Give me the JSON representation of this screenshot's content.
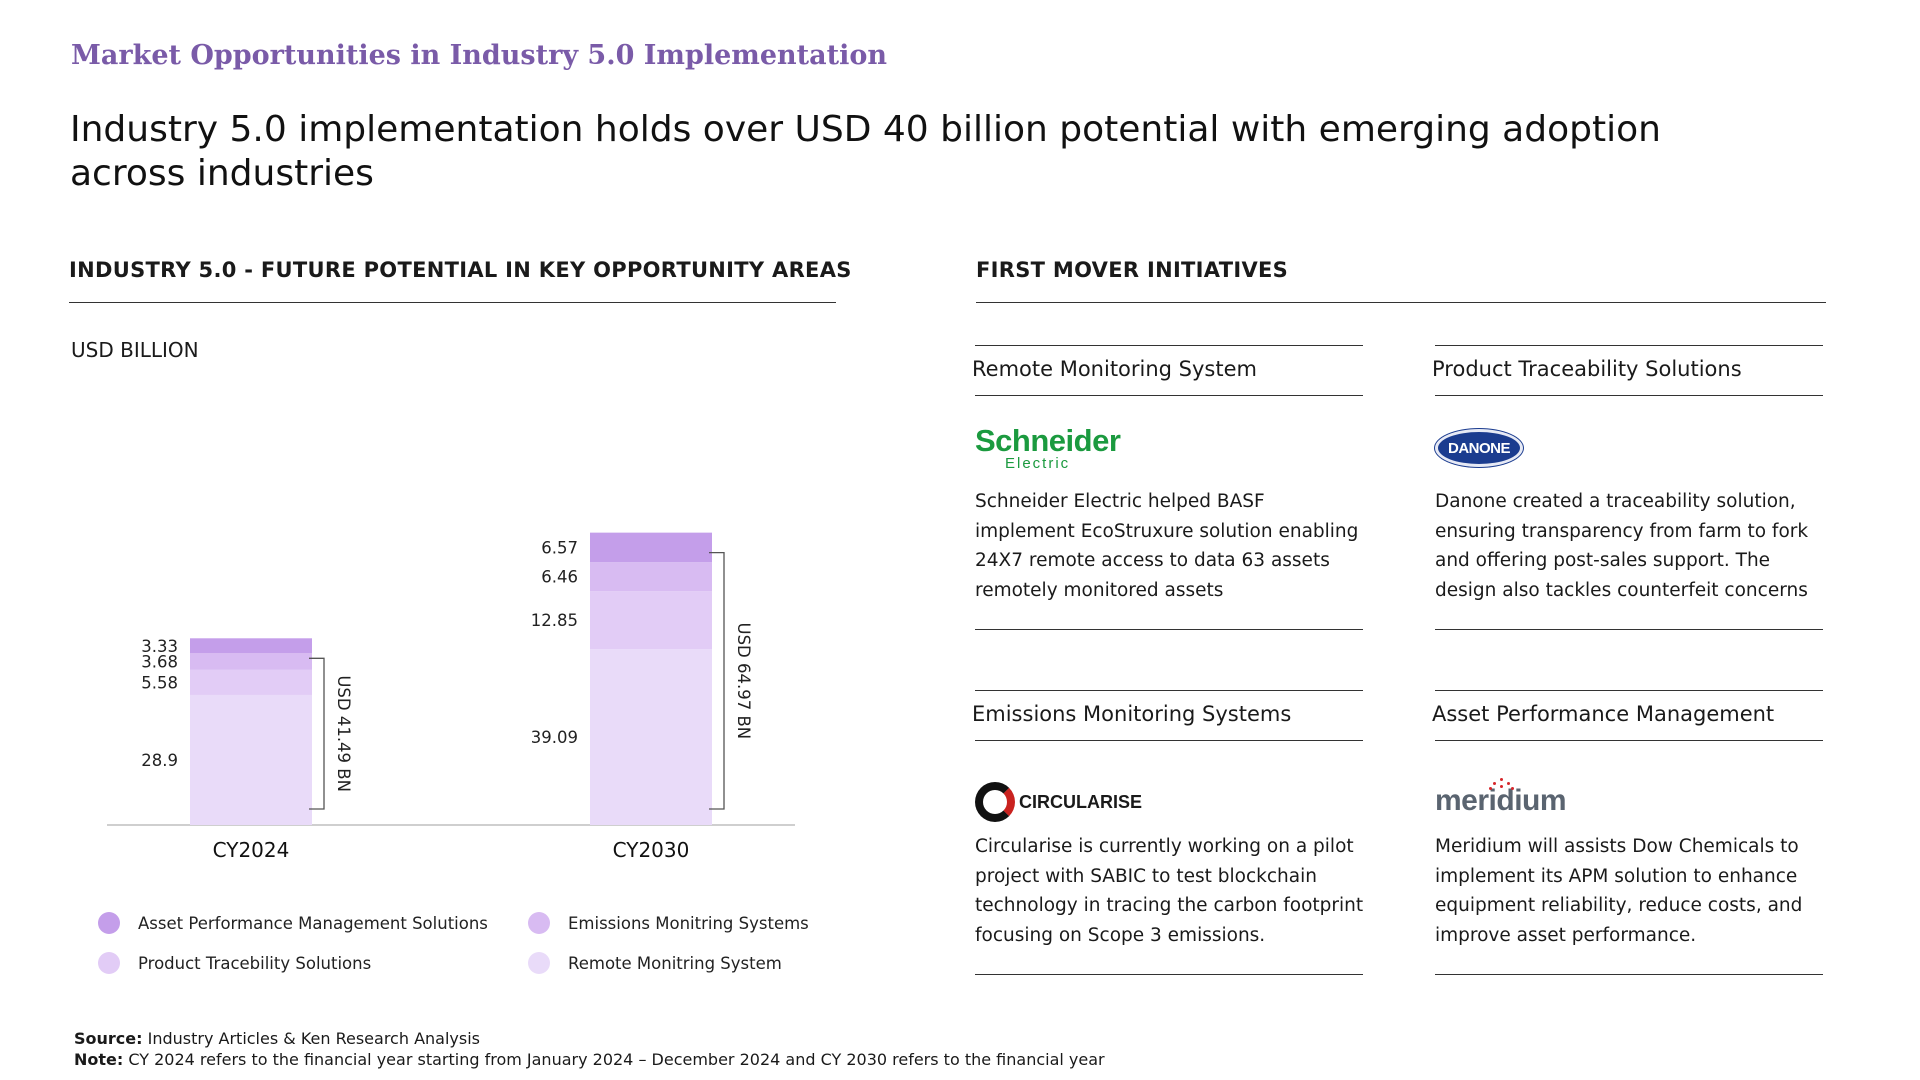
{
  "header": {
    "kicker": "Market Opportunities in Industry 5.0 Implementation",
    "headline": "Industry 5.0 implementation holds over USD 40 billion potential with emerging adoption across industries"
  },
  "left_section": {
    "title": "INDUSTRY 5.0 - FUTURE POTENTIAL IN KEY OPPORTUNITY AREAS",
    "unit": "USD BILLION"
  },
  "right_section": {
    "title": "FIRST MOVER INITIATIVES"
  },
  "chart_data": {
    "type": "bar",
    "stacked": true,
    "categories": [
      "CY2024",
      "CY2030"
    ],
    "series": [
      {
        "name": "Remote Monitring System",
        "legend_label": "Remonte Monitring System",
        "values": [
          28.9,
          39.09
        ],
        "color": "#e9dbf9"
      },
      {
        "name": "Product Traceability Solutions",
        "legend_label": "Product Tracebility Solutions",
        "values": [
          5.58,
          12.85
        ],
        "color": "#e2ccf6"
      },
      {
        "name": "Emissions Monitoring Systems",
        "legend_label": "Emissions Monitring Systems",
        "values": [
          3.68,
          6.46
        ],
        "color": "#d8bbf2"
      },
      {
        "name": "Asset Performance Management Solutions",
        "legend_label": "Asset Performance Management Solutions",
        "values": [
          3.33,
          6.57
        ],
        "color": "#c49eea"
      }
    ],
    "totals": [
      {
        "label": "USD 41.49 BN",
        "value": 41.49
      },
      {
        "label": "USD 64.97 BN",
        "value": 64.97
      }
    ],
    "value_labels": [
      [
        "28.9",
        "5.58",
        "3.68",
        "3.33"
      ],
      [
        "39.09",
        "12.85",
        "6.46",
        "6.57"
      ]
    ],
    "ylim": [
      0,
      66
    ],
    "grid": false,
    "legend_position": "bottom"
  },
  "legend": {
    "items": [
      {
        "label": "Asset Performance Management Solutions",
        "color": "#c49eea"
      },
      {
        "label": "Emissions Monitring Systems",
        "color": "#d8bbf2"
      },
      {
        "label": "Product Tracebility Solutions",
        "color": "#e2ccf6"
      },
      {
        "label": "Remote Monitring System",
        "color": "#e9dbf9"
      }
    ]
  },
  "initiatives": [
    {
      "title": "Remote Monitoring System",
      "logo": {
        "text": "Schneider",
        "sub": "Electric",
        "icon": "schneider-logo"
      },
      "text": "Schneider Electric helped BASF implement EcoStruxure solution enabling 24X7 remote access to data 63 assets remotely monitored assets"
    },
    {
      "title": "Product Traceability Solutions",
      "logo": {
        "text": "DANONE",
        "icon": "danone-logo"
      },
      "text": "Danone created a traceability solution, ensuring transparency from farm to fork and offering post-sales support. The design also tackles counterfeit concerns"
    },
    {
      "title": "Emissions Monitoring Systems",
      "logo": {
        "text": "CIRCULARISE",
        "icon": "circularise-logo"
      },
      "text": "Circularise is currently working on a pilot project with SABIC to test blockchain technology in tracing the carbon footprint focusing on Scope 3 emissions."
    },
    {
      "title": "Asset Performance Management",
      "logo": {
        "text": "meridium",
        "icon": "meridium-logo"
      },
      "text": "Meridium will assists Dow Chemicals to implement its APM solution to enhance equipment reliability, reduce costs, and improve asset performance."
    }
  ],
  "footer": {
    "source_label": "Source:",
    "source_text": " Industry Articles & Ken Research Analysis",
    "note_label": "Note:",
    "note_text": " CY 2024 refers to the financial year starting from January 2024 – December 2024 and CY 2030 refers to the financial year"
  }
}
